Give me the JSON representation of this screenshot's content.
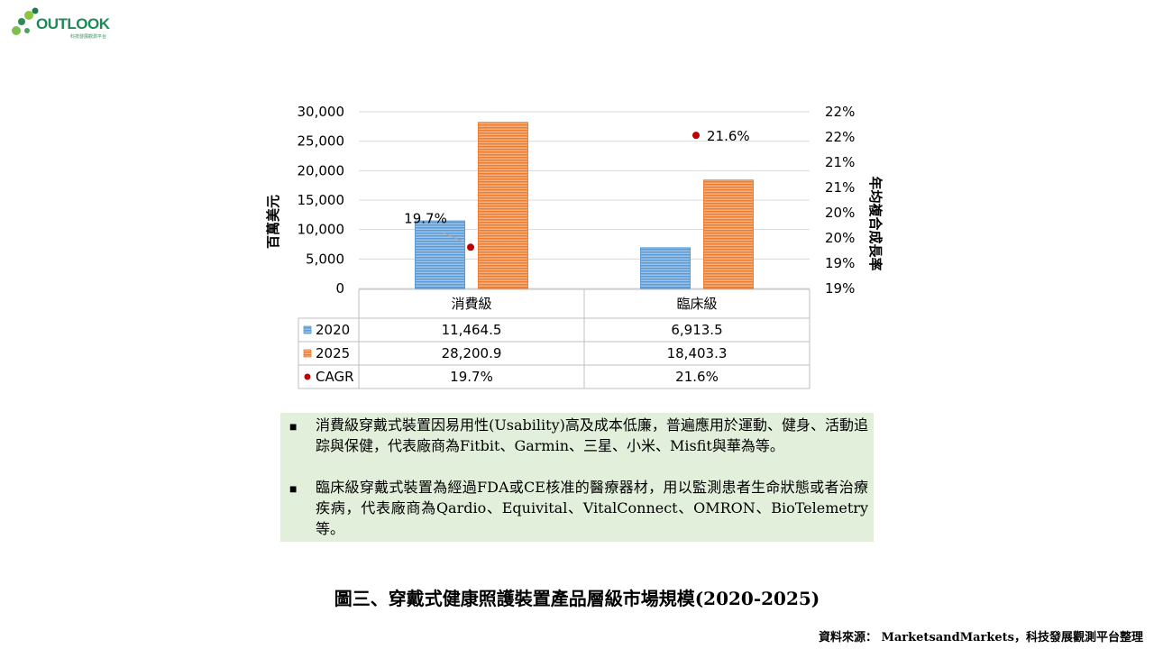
{
  "logo": {
    "text": "OUTLOOK",
    "subtitle": "科技發展觀測平台"
  },
  "chart_data": {
    "type": "bar",
    "categories": [
      "消費級",
      "臨床級"
    ],
    "series": [
      {
        "name": "2020",
        "values": [
          11464.5,
          6913.5
        ],
        "labels": [
          "11,464.5",
          "6,913.5"
        ],
        "color": "#5b9bd5"
      },
      {
        "name": "2025",
        "values": [
          28200.9,
          18403.3
        ],
        "labels": [
          "28,200.9",
          "18,403.3"
        ],
        "color": "#ed7d31"
      }
    ],
    "line_series": {
      "name": "CAGR",
      "values": [
        19.7,
        21.6
      ],
      "labels": [
        "19.7%",
        "21.6%"
      ],
      "color": "#c00000",
      "axis": "secondary"
    },
    "ylabel": "百萬美元",
    "y2label": "年均複合成長率",
    "ylim": [
      0,
      30000
    ],
    "yticks": [
      "30,000",
      "25,000",
      "20,000",
      "15,000",
      "10,000",
      "5,000",
      "0"
    ],
    "y2lim": [
      19.0,
      22.0
    ],
    "y2ticks": [
      "22%",
      "22%",
      "21%",
      "21%",
      "20%",
      "20%",
      "19%",
      "19%"
    ],
    "grid": true,
    "data_table": true
  },
  "description": {
    "bullet_char": "■",
    "items": [
      "消費級穿戴式裝置因易用性(Usability)高及成本低廉，普遍應用於運動、健身、活動追踪與保健，代表廠商為Fitbit、Garmin、三星、小米、Misfit與華為等。",
      "臨床級穿戴式裝置為經過FDA或CE核准的醫療器材，用以監測患者生命狀態或者治療疾病，代表廠商為Qardio、Equivital、VitalConnect、OMRON、BioTelemetry等。"
    ]
  },
  "caption": "圖三、穿戴式健康照護裝置產品層級市場規模(2020-2025)",
  "source": "資料來源： MarketsandMarkets，科技發展觀測平台整理"
}
